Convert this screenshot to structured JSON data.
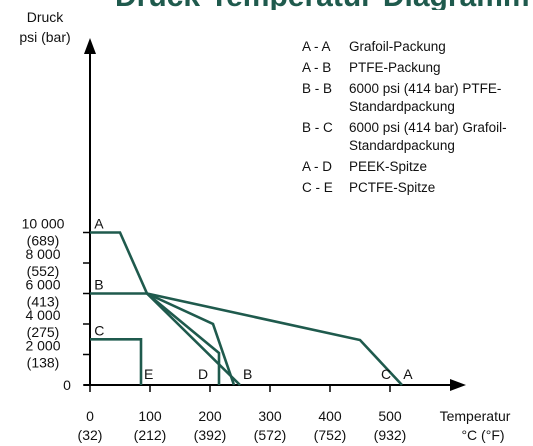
{
  "header_fragment": "Druck-Temperatur-Diagramm",
  "chart_data": {
    "type": "line",
    "title": "",
    "ylabel": [
      "Druck",
      "psi (bar)"
    ],
    "xlabel": [
      "Temperatur",
      "°C (°F)"
    ],
    "xlim": [
      0,
      600
    ],
    "ylim": [
      0,
      11000
    ],
    "x_ticks": [
      {
        "value": 0,
        "label": "0",
        "sublabel": "(32)"
      },
      {
        "value": 100,
        "label": "100",
        "sublabel": "(212)"
      },
      {
        "value": 200,
        "label": "200",
        "sublabel": "(392)"
      },
      {
        "value": 300,
        "label": "300",
        "sublabel": "(572)"
      },
      {
        "value": 400,
        "label": "400",
        "sublabel": "(752)"
      },
      {
        "value": 500,
        "label": "500",
        "sublabel": "(932)"
      }
    ],
    "y_ticks": [
      {
        "value": 0,
        "label": "0",
        "sublabel": ""
      },
      {
        "value": 2000,
        "label": "2 000",
        "sublabel": "(138)"
      },
      {
        "value": 4000,
        "label": "4 000",
        "sublabel": "(275)"
      },
      {
        "value": 6000,
        "label": "6 000",
        "sublabel": "(413)"
      },
      {
        "value": 8000,
        "label": "8 000",
        "sublabel": "(552)"
      },
      {
        "value": 10000,
        "label": "10 000",
        "sublabel": "(689)"
      }
    ],
    "line_color": "#1f5a4d",
    "series": [
      {
        "points": [
          [
            0,
            10000
          ],
          [
            50,
            10000
          ],
          [
            95,
            6000
          ],
          [
            450,
            2950
          ],
          [
            520,
            0
          ]
        ]
      },
      {
        "points": [
          [
            0,
            6000
          ],
          [
            95,
            6000
          ],
          [
            250,
            0
          ]
        ]
      },
      {
        "points": [
          [
            95,
            6000
          ],
          [
            205,
            4000
          ],
          [
            240,
            0
          ]
        ]
      },
      {
        "points": [
          [
            95,
            6000
          ],
          [
            215,
            2100
          ],
          [
            215,
            0
          ]
        ]
      },
      {
        "points": [
          [
            0,
            3000
          ],
          [
            85,
            3000
          ],
          [
            85,
            0
          ]
        ]
      }
    ],
    "point_labels": [
      {
        "text": "A",
        "x": 7,
        "y": 10250
      },
      {
        "text": "B",
        "x": 7,
        "y": 6250
      },
      {
        "text": "C",
        "x": 7,
        "y": 3250
      },
      {
        "text": "E",
        "x": 90,
        "y": 380
      },
      {
        "text": "D",
        "x": 180,
        "y": 380
      },
      {
        "text": "B",
        "x": 255,
        "y": 380
      },
      {
        "text": "C",
        "x": 485,
        "y": 380
      },
      {
        "text": "A",
        "x": 522,
        "y": 380
      }
    ],
    "legend": [
      {
        "code": "A - A",
        "lines": [
          "Grafoil-Packung"
        ]
      },
      {
        "code": "A - B",
        "lines": [
          "PTFE-Packung"
        ]
      },
      {
        "code": "B - B",
        "lines": [
          "6000 psi (414 bar) PTFE-",
          "Standardpackung"
        ]
      },
      {
        "code": "B - C",
        "lines": [
          "6000 psi (414 bar) Grafoil-",
          "Standardpackung"
        ]
      },
      {
        "code": "A - D",
        "lines": [
          "PEEK-Spitze"
        ]
      },
      {
        "code": "C - E",
        "lines": [
          "PCTFE-Spitze"
        ]
      }
    ],
    "legend_placement": "top-right"
  }
}
